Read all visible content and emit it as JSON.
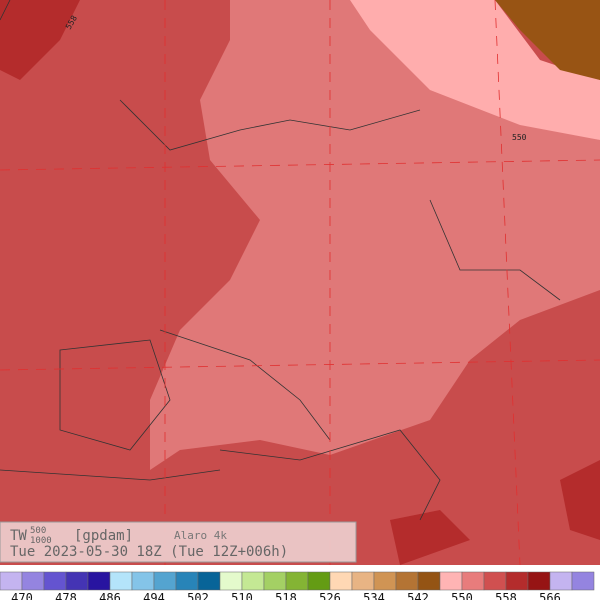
{
  "header": {
    "field": "TW",
    "upper_level": "500",
    "lower_level": "1000",
    "unit": "[gpdam]",
    "model": "Alaro 4k",
    "date": "Tue 2023-05-30 18Z (Tue 12Z+006h)"
  },
  "contour_labels": [
    "558",
    "550"
  ],
  "colorbar": {
    "colors": [
      "#c4b4f0",
      "#9484e0",
      "#6454d0",
      "#4434b4",
      "#2814a0",
      "#b4e4fa",
      "#84c4e8",
      "#54a4d0",
      "#2884b8",
      "#086498",
      "#e4facc",
      "#c4e894",
      "#a4d064",
      "#84b434",
      "#649c14",
      "#ffd8b4",
      "#e8b484",
      "#d09454",
      "#b47434",
      "#945414",
      "#ffb4b4",
      "#e87c7c",
      "#d05050",
      "#b42c2c",
      "#961414",
      "#c4b4f0",
      "#9484e0"
    ],
    "ticks": [
      "470",
      "478",
      "486",
      "494",
      "502",
      "510",
      "518",
      "526",
      "534",
      "542",
      "550",
      "558",
      "566"
    ]
  }
}
